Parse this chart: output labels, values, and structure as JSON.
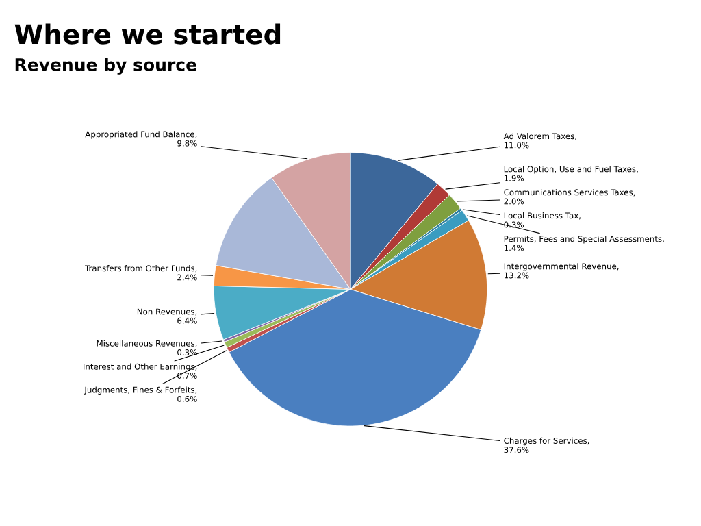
{
  "chart_data": {
    "type": "pie",
    "title": "Where we started",
    "subtitle": "Revenue by source",
    "categories": [
      "Ad Valorem Taxes, 11.0%",
      "Local Option, Use and Fuel Taxes, 1.9%",
      "Communications Services Taxes, 2.0%",
      "Local Business Tax, 0.3%",
      "Permits, Fees and Special Assessments, 1.4%",
      "Intergovernmental Revenue, 13.2%",
      "Charges for Services, 37.6%",
      "Judgments, Fines & Forfeits, 0.6%",
      "Interest and Other Earnings, 0.7%",
      "Miscellaneous Revenues, 0.3%",
      "Non Revenues, 6.4%",
      "Transfers from Other Funds, 2.4%",
      null,
      "Appropriated Fund Balance, 9.8%"
    ],
    "values": [
      11.0,
      1.9,
      2.0,
      0.3,
      1.4,
      13.2,
      37.6,
      0.6,
      0.7,
      0.3,
      6.4,
      2.4,
      12.4,
      9.8
    ],
    "colors": [
      "#3c679a",
      "#b03a36",
      "#7f9f3f",
      "#2f7f9e",
      "#3a9cc0",
      "#d07a34",
      "#4a7fc0",
      "#c0504d",
      "#9bbb59",
      "#8064a2",
      "#4bacc6",
      "#f79646",
      "#a9b8d8",
      "#d4a3a3"
    ],
    "legend": false
  }
}
